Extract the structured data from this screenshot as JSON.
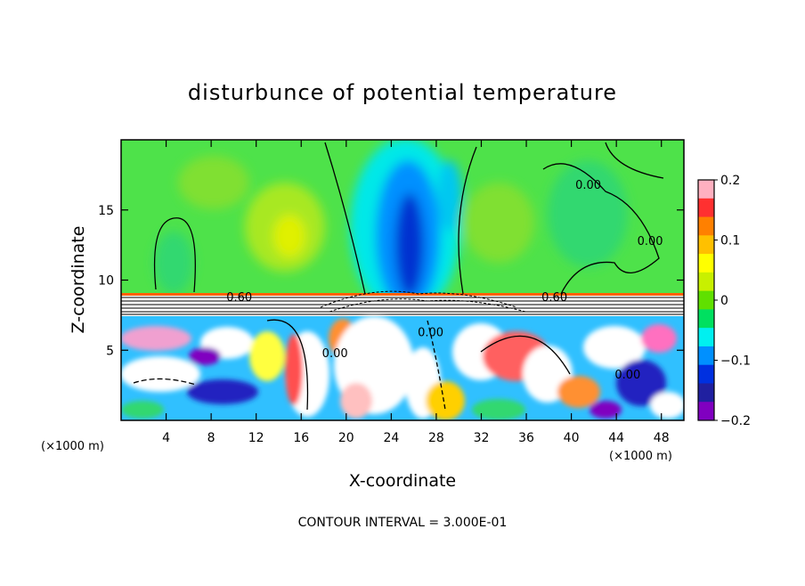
{
  "chart_data": {
    "type": "heatmap",
    "title": "disturbunce of potential temperature",
    "xlabel": "X-coordinate",
    "ylabel": "Z-coordinate",
    "x_unit": "(×1000 m)",
    "x_unit_right": "(×1000 m)",
    "xlim": [
      0,
      50
    ],
    "ylim": [
      0,
      20
    ],
    "xticks": [
      "4",
      "8",
      "12",
      "16",
      "20",
      "24",
      "28",
      "32",
      "36",
      "40",
      "44",
      "48"
    ],
    "xtick_values": [
      4,
      8,
      12,
      16,
      20,
      24,
      28,
      32,
      36,
      40,
      44,
      48
    ],
    "yticks": [
      "5",
      "10",
      "15"
    ],
    "ytick_values": [
      5,
      10,
      15
    ],
    "colorbar": {
      "min": -0.2,
      "max": 0.2,
      "ticks": [
        "0.2",
        "0.1",
        "0",
        "−0.1",
        "−0.2"
      ],
      "tick_values": [
        0.2,
        0.1,
        0,
        -0.1,
        -0.2
      ],
      "colors": [
        "#ffb0c0",
        "#ff3030",
        "#ff8000",
        "#ffc000",
        "#ffff00",
        "#c8f000",
        "#60e000",
        "#00e060",
        "#00f0f0",
        "#0090ff",
        "#0030e0",
        "#2020a0",
        "#8000c0"
      ]
    },
    "contour_labels": [
      {
        "text": "0.60",
        "x": 10.5,
        "z": 8.5
      },
      {
        "text": "0.60",
        "x": 38.5,
        "z": 8.5
      },
      {
        "text": "0.00",
        "x": 41.5,
        "z": 16.5
      },
      {
        "text": "0.00",
        "x": 47.0,
        "z": 12.5
      },
      {
        "text": "0.00",
        "x": 19.0,
        "z": 4.5
      },
      {
        "text": "0.00",
        "x": 27.5,
        "z": 6.0
      },
      {
        "text": "0.00",
        "x": 45.0,
        "z": 3.0
      }
    ],
    "contour_interval_label": "CONTOUR INTERVAL = 3.000E-01"
  }
}
